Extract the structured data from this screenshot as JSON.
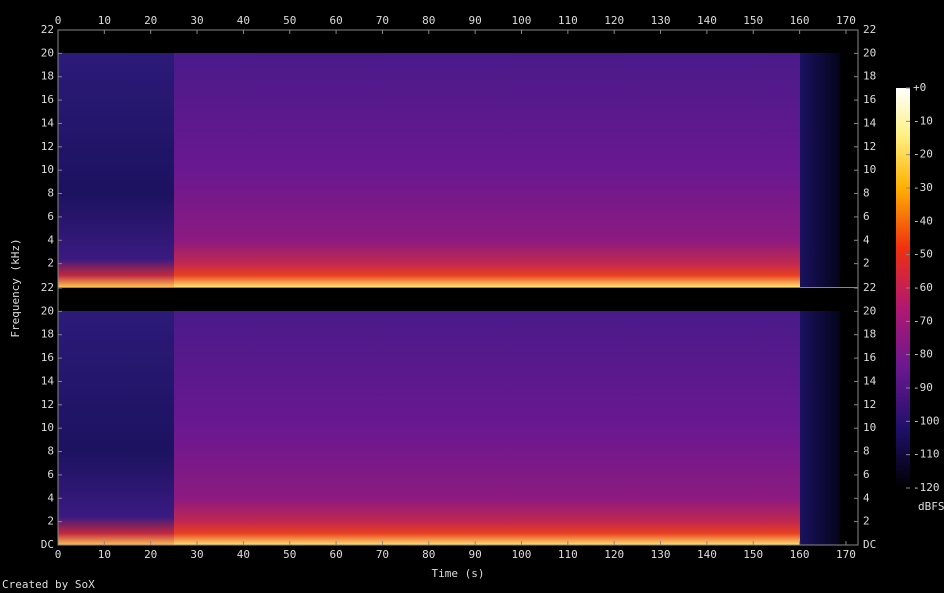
{
  "chart_data": {
    "type": "spectrogram",
    "xlabel": "Time (s)",
    "ylabel": "Frequency (kHz)",
    "xlim": [
      0,
      172.6
    ],
    "xticks": [
      0,
      10,
      20,
      30,
      40,
      50,
      60,
      70,
      80,
      90,
      100,
      110,
      120,
      130,
      140,
      150,
      160,
      170
    ],
    "channels": [
      {
        "ylim": [
          0,
          22
        ],
        "yticks": [
          2,
          4,
          6,
          8,
          10,
          12,
          14,
          16,
          18,
          20,
          22
        ]
      },
      {
        "ylim": [
          0,
          22
        ],
        "yticks": [
          {
            "value": 0,
            "label": "DC"
          },
          2,
          4,
          6,
          8,
          10,
          12,
          14,
          16,
          18,
          20,
          22
        ]
      }
    ],
    "colorbar": {
      "zlim": [
        -120,
        0
      ],
      "zticks": [
        {
          "value": 0,
          "label": "+0"
        },
        -10,
        -20,
        -30,
        -40,
        -50,
        -60,
        -70,
        -80,
        -90,
        -100,
        -110,
        -120
      ],
      "label": "dBFS"
    },
    "footer": "Created by SoX"
  }
}
